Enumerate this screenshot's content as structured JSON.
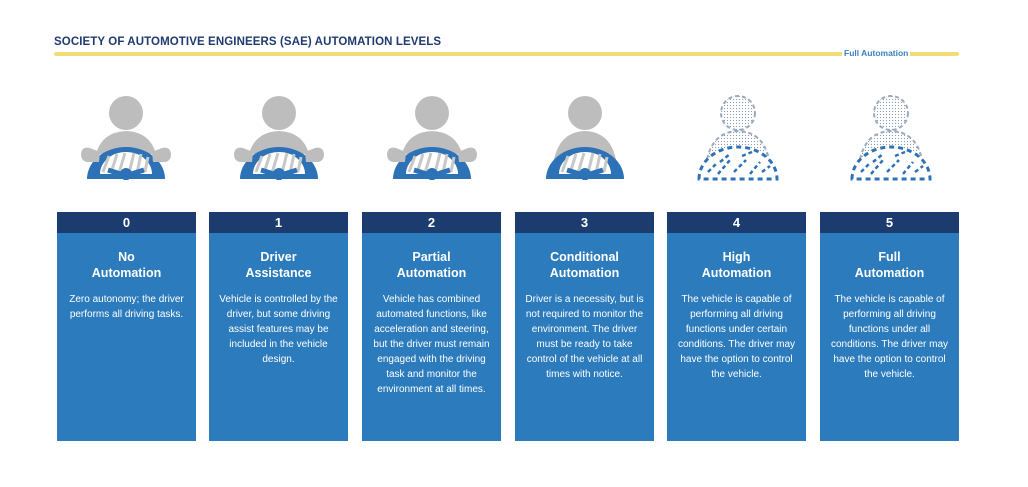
{
  "title": "SOCIETY OF AUTOMOTIVE ENGINEERS (SAE) AUTOMATION LEVELS",
  "scale_end_label": "Full Automation",
  "colors": {
    "navy": "#1c3b6e",
    "card_blue": "#2c7bbd",
    "wheel_blue": "#2d72b6",
    "person_gray": "#bdbdbd",
    "accent_yellow": "#f2dd74"
  },
  "levels": [
    {
      "number": "0",
      "name_line1": "No",
      "name_line2": "Automation",
      "description": "Zero autonomy; the driver performs all driving tasks.",
      "icon": "driver-at-wheel-icon"
    },
    {
      "number": "1",
      "name_line1": "Driver",
      "name_line2": "Assistance",
      "description": "Vehicle is controlled by the driver, but some driving assist features may be included in the vehicle design.",
      "icon": "driver-at-wheel-icon"
    },
    {
      "number": "2",
      "name_line1": "Partial",
      "name_line2": "Automation",
      "description": "Vehicle has combined automated functions, like acceleration and steering, but the driver must remain engaged with the driving task and monitor the environment at all times.",
      "icon": "driver-at-wheel-icon"
    },
    {
      "number": "3",
      "name_line1": "Conditional",
      "name_line2": "Automation",
      "description": "Driver is a necessity, but is not required to monitor the environment. The driver must be ready to take control of the vehicle at all times with notice.",
      "icon": "driver-hands-off-icon"
    },
    {
      "number": "4",
      "name_line1": "High",
      "name_line2": "Automation",
      "description": "The vehicle is capable of performing all driving functions under certain conditions. The driver may have the option to control the vehicle.",
      "icon": "optional-driver-icon"
    },
    {
      "number": "5",
      "name_line1": "Full",
      "name_line2": "Automation",
      "description": "The vehicle is capable of performing all driving functions under all conditions. The driver may have the option to control the vehicle.",
      "icon": "optional-driver-icon"
    }
  ]
}
